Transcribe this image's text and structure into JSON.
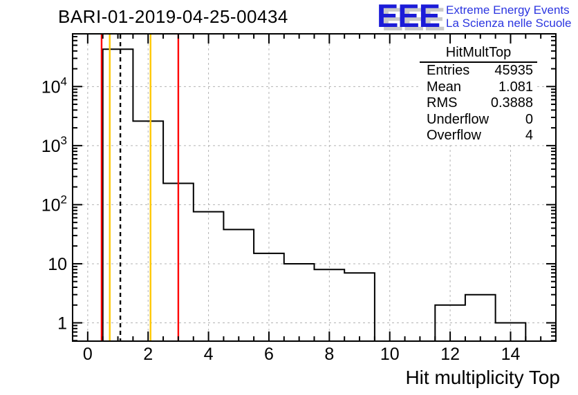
{
  "page": {
    "title": "BARI-01-2019-04-25-00434"
  },
  "logo": {
    "letters": "EEE",
    "line1": "Extreme Energy Events",
    "line2": "La Scienza nelle Scuole",
    "letters_color": "#1b1bd8",
    "letters_shadow_color": "#c9c9c9",
    "text_color": "#2b35e0"
  },
  "stats": {
    "header": "HitMultTop",
    "rows": [
      {
        "label": "Entries",
        "value": "45935"
      },
      {
        "label": "Mean",
        "value": "1.081"
      },
      {
        "label": "RMS",
        "value": "0.3888"
      },
      {
        "label": "Underflow",
        "value": "0"
      },
      {
        "label": "Overflow",
        "value": "4"
      }
    ]
  },
  "chart_data": {
    "type": "bar",
    "subtype": "step-histogram",
    "title": "BARI-01-2019-04-25-00434",
    "xlabel": "Hit multiplicity Top",
    "ylabel": "",
    "x_range": [
      -0.5,
      15.5
    ],
    "y_scale": "log",
    "y_range": [
      0.49,
      78000
    ],
    "bin_width": 1,
    "bin_centers": [
      0,
      1,
      2,
      3,
      4,
      5,
      6,
      7,
      8,
      9,
      10,
      11,
      12,
      13,
      14,
      15
    ],
    "values": [
      0,
      42941,
      2600,
      230,
      76,
      38,
      15,
      10,
      8,
      7,
      0,
      0,
      2,
      3,
      1,
      0
    ],
    "x_major_ticks": [
      0,
      2,
      4,
      6,
      8,
      10,
      12,
      14
    ],
    "x_minor_step": 0.5,
    "y_decade_ticks": [
      1,
      10,
      100,
      1000,
      10000
    ],
    "grid": true,
    "grid_color": "#b3b3b3",
    "line_color": "#000000",
    "marker_lines": [
      {
        "x": 0.46,
        "color": "#ff0000",
        "style": "solid"
      },
      {
        "x": 0.73,
        "color": "#ffc800",
        "style": "solid"
      },
      {
        "x": 1.081,
        "color": "#000000",
        "style": "dashed"
      },
      {
        "x": 2.08,
        "color": "#ffc800",
        "style": "solid"
      },
      {
        "x": 3.0,
        "color": "#ff0000",
        "style": "solid"
      }
    ],
    "legend_position": "none"
  }
}
